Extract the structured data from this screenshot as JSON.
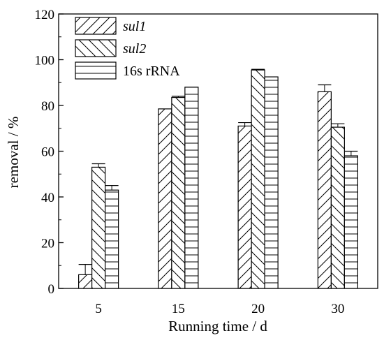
{
  "chart_data": {
    "type": "bar",
    "xlabel": "Running time / d",
    "ylabel": "removal / %",
    "ylim": [
      0,
      120
    ],
    "yticks": [
      0,
      20,
      40,
      60,
      80,
      100,
      120
    ],
    "categories": [
      "5",
      "15",
      "20",
      "30"
    ],
    "series": [
      {
        "name": "sul1",
        "pattern": "forward-diagonal",
        "values": [
          6,
          78.5,
          71,
          86
        ],
        "errors": [
          4.5,
          0,
          1.5,
          3
        ]
      },
      {
        "name": "sul2",
        "pattern": "back-diagonal",
        "values": [
          53,
          83.5,
          95.5,
          70.5
        ],
        "errors": [
          1.5,
          0.5,
          0.3,
          1.5
        ]
      },
      {
        "name": "16s rRNA",
        "pattern": "horizontal",
        "values": [
          43,
          88,
          92.5,
          58
        ],
        "errors": [
          2,
          0,
          0,
          2
        ]
      }
    ],
    "legend_position": "top-left",
    "grid": false
  }
}
